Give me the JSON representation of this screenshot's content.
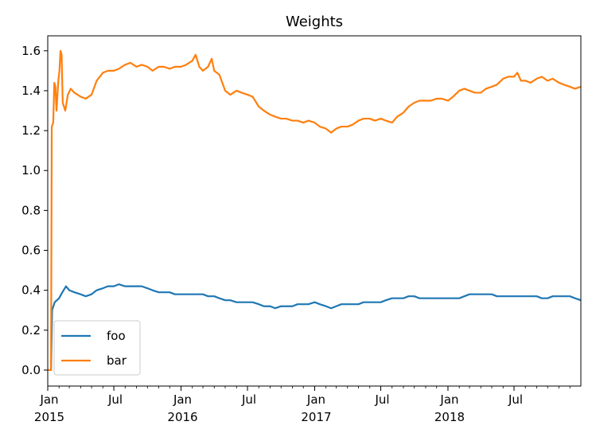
{
  "chart_data": {
    "type": "line",
    "title": "Weights",
    "xlabel": "",
    "ylabel": "",
    "x_range": [
      "2015-01-01",
      "2018-12-31"
    ],
    "ylim": [
      -0.08,
      1.675
    ],
    "legend": {
      "placement": "lower-left",
      "entries": [
        "foo",
        "bar"
      ]
    },
    "y_ticks": [
      {
        "value": 0.0,
        "label": "0.0"
      },
      {
        "value": 0.2,
        "label": "0.2"
      },
      {
        "value": 0.4,
        "label": "0.4"
      },
      {
        "value": 0.6,
        "label": "0.6"
      },
      {
        "value": 0.8,
        "label": "0.8"
      },
      {
        "value": 1.0,
        "label": "1.0"
      },
      {
        "value": 1.2,
        "label": "1.2"
      },
      {
        "value": 1.4,
        "label": "1.4"
      },
      {
        "value": 1.6,
        "label": "1.6"
      }
    ],
    "x_major_ticks": [
      {
        "date": "2015-01-01",
        "label": "Jan",
        "year": "2015"
      },
      {
        "date": "2015-07-01",
        "label": "Jul",
        "year": ""
      },
      {
        "date": "2016-01-01",
        "label": "Jan",
        "year": "2016"
      },
      {
        "date": "2016-07-01",
        "label": "Jul",
        "year": ""
      },
      {
        "date": "2017-01-01",
        "label": "Jan",
        "year": "2017"
      },
      {
        "date": "2017-07-01",
        "label": "Jul",
        "year": ""
      },
      {
        "date": "2018-01-01",
        "label": "Jan",
        "year": "2018"
      },
      {
        "date": "2018-07-01",
        "label": "Jul",
        "year": ""
      }
    ],
    "series": [
      {
        "name": "foo",
        "color": "#1f77b4",
        "points": [
          [
            "2015-01-01",
            0.0
          ],
          [
            "2015-01-10",
            0.0
          ],
          [
            "2015-01-13",
            0.3
          ],
          [
            "2015-01-20",
            0.34
          ],
          [
            "2015-02-01",
            0.36
          ],
          [
            "2015-02-10",
            0.39
          ],
          [
            "2015-02-20",
            0.42
          ],
          [
            "2015-03-01",
            0.4
          ],
          [
            "2015-03-15",
            0.39
          ],
          [
            "2015-04-01",
            0.38
          ],
          [
            "2015-04-15",
            0.37
          ],
          [
            "2015-05-01",
            0.38
          ],
          [
            "2015-05-15",
            0.4
          ],
          [
            "2015-06-01",
            0.41
          ],
          [
            "2015-06-15",
            0.42
          ],
          [
            "2015-07-01",
            0.42
          ],
          [
            "2015-07-15",
            0.43
          ],
          [
            "2015-08-01",
            0.42
          ],
          [
            "2015-08-15",
            0.42
          ],
          [
            "2015-09-01",
            0.42
          ],
          [
            "2015-09-15",
            0.42
          ],
          [
            "2015-10-01",
            0.41
          ],
          [
            "2015-10-15",
            0.4
          ],
          [
            "2015-11-01",
            0.39
          ],
          [
            "2015-11-15",
            0.39
          ],
          [
            "2015-12-01",
            0.39
          ],
          [
            "2015-12-15",
            0.38
          ],
          [
            "2016-01-01",
            0.38
          ],
          [
            "2016-01-15",
            0.38
          ],
          [
            "2016-02-01",
            0.38
          ],
          [
            "2016-02-15",
            0.38
          ],
          [
            "2016-03-01",
            0.38
          ],
          [
            "2016-03-15",
            0.37
          ],
          [
            "2016-04-01",
            0.37
          ],
          [
            "2016-04-15",
            0.36
          ],
          [
            "2016-05-01",
            0.35
          ],
          [
            "2016-05-15",
            0.35
          ],
          [
            "2016-06-01",
            0.34
          ],
          [
            "2016-06-15",
            0.34
          ],
          [
            "2016-07-01",
            0.34
          ],
          [
            "2016-07-15",
            0.34
          ],
          [
            "2016-08-01",
            0.33
          ],
          [
            "2016-08-15",
            0.32
          ],
          [
            "2016-09-01",
            0.32
          ],
          [
            "2016-09-15",
            0.31
          ],
          [
            "2016-10-01",
            0.32
          ],
          [
            "2016-10-15",
            0.32
          ],
          [
            "2016-11-01",
            0.32
          ],
          [
            "2016-11-15",
            0.33
          ],
          [
            "2016-12-01",
            0.33
          ],
          [
            "2016-12-15",
            0.33
          ],
          [
            "2017-01-01",
            0.34
          ],
          [
            "2017-01-15",
            0.33
          ],
          [
            "2017-02-01",
            0.32
          ],
          [
            "2017-02-15",
            0.31
          ],
          [
            "2017-03-01",
            0.32
          ],
          [
            "2017-03-15",
            0.33
          ],
          [
            "2017-04-01",
            0.33
          ],
          [
            "2017-04-15",
            0.33
          ],
          [
            "2017-05-01",
            0.33
          ],
          [
            "2017-05-15",
            0.34
          ],
          [
            "2017-06-01",
            0.34
          ],
          [
            "2017-06-15",
            0.34
          ],
          [
            "2017-07-01",
            0.34
          ],
          [
            "2017-07-15",
            0.35
          ],
          [
            "2017-08-01",
            0.36
          ],
          [
            "2017-08-15",
            0.36
          ],
          [
            "2017-09-01",
            0.36
          ],
          [
            "2017-09-15",
            0.37
          ],
          [
            "2017-10-01",
            0.37
          ],
          [
            "2017-10-15",
            0.36
          ],
          [
            "2017-11-01",
            0.36
          ],
          [
            "2017-11-15",
            0.36
          ],
          [
            "2017-12-01",
            0.36
          ],
          [
            "2017-12-15",
            0.36
          ],
          [
            "2018-01-01",
            0.36
          ],
          [
            "2018-01-15",
            0.36
          ],
          [
            "2018-02-01",
            0.36
          ],
          [
            "2018-02-15",
            0.37
          ],
          [
            "2018-03-01",
            0.38
          ],
          [
            "2018-03-15",
            0.38
          ],
          [
            "2018-04-01",
            0.38
          ],
          [
            "2018-04-15",
            0.38
          ],
          [
            "2018-05-01",
            0.38
          ],
          [
            "2018-05-15",
            0.37
          ],
          [
            "2018-06-01",
            0.37
          ],
          [
            "2018-06-15",
            0.37
          ],
          [
            "2018-07-01",
            0.37
          ],
          [
            "2018-07-15",
            0.37
          ],
          [
            "2018-08-01",
            0.37
          ],
          [
            "2018-08-15",
            0.37
          ],
          [
            "2018-09-01",
            0.37
          ],
          [
            "2018-09-15",
            0.36
          ],
          [
            "2018-10-01",
            0.36
          ],
          [
            "2018-10-15",
            0.37
          ],
          [
            "2018-11-01",
            0.37
          ],
          [
            "2018-11-15",
            0.37
          ],
          [
            "2018-12-01",
            0.37
          ],
          [
            "2018-12-15",
            0.36
          ],
          [
            "2018-12-31",
            0.35
          ]
        ]
      },
      {
        "name": "bar",
        "color": "#ff7f0e",
        "points": [
          [
            "2015-01-01",
            0.0
          ],
          [
            "2015-01-10",
            0.0
          ],
          [
            "2015-01-12",
            1.22
          ],
          [
            "2015-01-16",
            1.24
          ],
          [
            "2015-01-19",
            1.44
          ],
          [
            "2015-01-22",
            1.42
          ],
          [
            "2015-01-25",
            1.3
          ],
          [
            "2015-01-30",
            1.45
          ],
          [
            "2015-02-02",
            1.5
          ],
          [
            "2015-02-05",
            1.6
          ],
          [
            "2015-02-08",
            1.58
          ],
          [
            "2015-02-11",
            1.34
          ],
          [
            "2015-02-18",
            1.3
          ],
          [
            "2015-02-25",
            1.38
          ],
          [
            "2015-03-05",
            1.41
          ],
          [
            "2015-03-15",
            1.39
          ],
          [
            "2015-04-01",
            1.37
          ],
          [
            "2015-04-15",
            1.36
          ],
          [
            "2015-05-01",
            1.38
          ],
          [
            "2015-05-15",
            1.45
          ],
          [
            "2015-06-01",
            1.49
          ],
          [
            "2015-06-15",
            1.5
          ],
          [
            "2015-07-01",
            1.5
          ],
          [
            "2015-07-15",
            1.51
          ],
          [
            "2015-08-01",
            1.53
          ],
          [
            "2015-08-15",
            1.54
          ],
          [
            "2015-09-01",
            1.52
          ],
          [
            "2015-09-15",
            1.53
          ],
          [
            "2015-10-01",
            1.52
          ],
          [
            "2015-10-15",
            1.5
          ],
          [
            "2015-11-01",
            1.52
          ],
          [
            "2015-11-15",
            1.52
          ],
          [
            "2015-12-01",
            1.51
          ],
          [
            "2015-12-15",
            1.52
          ],
          [
            "2016-01-01",
            1.52
          ],
          [
            "2016-01-15",
            1.53
          ],
          [
            "2016-02-01",
            1.55
          ],
          [
            "2016-02-10",
            1.58
          ],
          [
            "2016-02-20",
            1.52
          ],
          [
            "2016-03-01",
            1.5
          ],
          [
            "2016-03-15",
            1.52
          ],
          [
            "2016-03-25",
            1.56
          ],
          [
            "2016-04-01",
            1.5
          ],
          [
            "2016-04-15",
            1.48
          ],
          [
            "2016-05-01",
            1.4
          ],
          [
            "2016-05-15",
            1.38
          ],
          [
            "2016-06-01",
            1.4
          ],
          [
            "2016-06-15",
            1.39
          ],
          [
            "2016-07-01",
            1.38
          ],
          [
            "2016-07-15",
            1.37
          ],
          [
            "2016-08-01",
            1.32
          ],
          [
            "2016-08-15",
            1.3
          ],
          [
            "2016-09-01",
            1.28
          ],
          [
            "2016-09-15",
            1.27
          ],
          [
            "2016-10-01",
            1.26
          ],
          [
            "2016-10-15",
            1.26
          ],
          [
            "2016-11-01",
            1.25
          ],
          [
            "2016-11-15",
            1.25
          ],
          [
            "2016-12-01",
            1.24
          ],
          [
            "2016-12-15",
            1.25
          ],
          [
            "2017-01-01",
            1.24
          ],
          [
            "2017-01-15",
            1.22
          ],
          [
            "2017-02-01",
            1.21
          ],
          [
            "2017-02-15",
            1.19
          ],
          [
            "2017-03-01",
            1.21
          ],
          [
            "2017-03-15",
            1.22
          ],
          [
            "2017-04-01",
            1.22
          ],
          [
            "2017-04-15",
            1.23
          ],
          [
            "2017-05-01",
            1.25
          ],
          [
            "2017-05-15",
            1.26
          ],
          [
            "2017-06-01",
            1.26
          ],
          [
            "2017-06-15",
            1.25
          ],
          [
            "2017-07-01",
            1.26
          ],
          [
            "2017-07-15",
            1.25
          ],
          [
            "2017-08-01",
            1.24
          ],
          [
            "2017-08-15",
            1.27
          ],
          [
            "2017-09-01",
            1.29
          ],
          [
            "2017-09-15",
            1.32
          ],
          [
            "2017-10-01",
            1.34
          ],
          [
            "2017-10-15",
            1.35
          ],
          [
            "2017-11-01",
            1.35
          ],
          [
            "2017-11-15",
            1.35
          ],
          [
            "2017-12-01",
            1.36
          ],
          [
            "2017-12-15",
            1.36
          ],
          [
            "2018-01-01",
            1.35
          ],
          [
            "2018-01-15",
            1.37
          ],
          [
            "2018-02-01",
            1.4
          ],
          [
            "2018-02-15",
            1.41
          ],
          [
            "2018-03-01",
            1.4
          ],
          [
            "2018-03-15",
            1.39
          ],
          [
            "2018-04-01",
            1.39
          ],
          [
            "2018-04-15",
            1.41
          ],
          [
            "2018-05-01",
            1.42
          ],
          [
            "2018-05-15",
            1.43
          ],
          [
            "2018-06-01",
            1.46
          ],
          [
            "2018-06-15",
            1.47
          ],
          [
            "2018-07-01",
            1.47
          ],
          [
            "2018-07-10",
            1.49
          ],
          [
            "2018-07-20",
            1.45
          ],
          [
            "2018-08-01",
            1.45
          ],
          [
            "2018-08-15",
            1.44
          ],
          [
            "2018-09-01",
            1.46
          ],
          [
            "2018-09-15",
            1.47
          ],
          [
            "2018-10-01",
            1.45
          ],
          [
            "2018-10-15",
            1.46
          ],
          [
            "2018-11-01",
            1.44
          ],
          [
            "2018-11-15",
            1.43
          ],
          [
            "2018-12-01",
            1.42
          ],
          [
            "2018-12-15",
            1.41
          ],
          [
            "2018-12-31",
            1.42
          ]
        ]
      }
    ]
  }
}
